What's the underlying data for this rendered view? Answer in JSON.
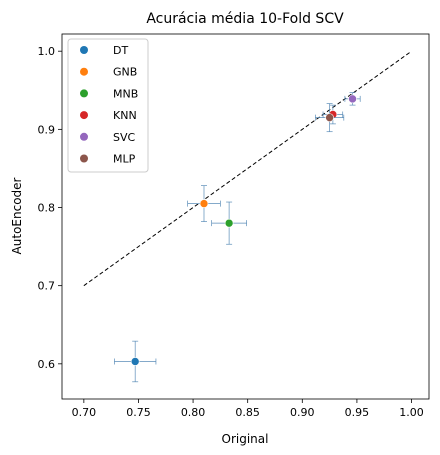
{
  "chart_data": {
    "type": "scatter",
    "title": "Acurácia média 10-Fold SCV",
    "xlabel": "Original",
    "ylabel": "AutoEncoder",
    "xlim": [
      0.68,
      1.016
    ],
    "ylim": [
      0.555,
      1.022
    ],
    "xticks": [
      "0.70",
      "0.75",
      "0.80",
      "0.85",
      "0.90",
      "0.95",
      "1.00"
    ],
    "yticks": [
      "0.6",
      "0.7",
      "0.8",
      "0.9",
      "1.0"
    ],
    "grid": false,
    "legend_position": "top-left",
    "reference_line": {
      "style": "dashed",
      "color": "#000000",
      "from": [
        0.7,
        0.7
      ],
      "to": [
        1.0,
        1.0
      ]
    },
    "error_bar_color": "#5b8db8",
    "series": [
      {
        "name": "DT",
        "color": "#1f77b4",
        "x": 0.747,
        "y": 0.603,
        "xerr": 0.019,
        "yerr": 0.026
      },
      {
        "name": "GNB",
        "color": "#ff7f0e",
        "x": 0.81,
        "y": 0.805,
        "xerr": 0.015,
        "yerr": 0.023
      },
      {
        "name": "MNB",
        "color": "#2ca02c",
        "x": 0.833,
        "y": 0.78,
        "xerr": 0.016,
        "yerr": 0.027
      },
      {
        "name": "KNN",
        "color": "#d62728",
        "x": 0.928,
        "y": 0.919,
        "xerr": 0.009,
        "yerr": 0.012
      },
      {
        "name": "SVC",
        "color": "#9467bd",
        "x": 0.946,
        "y": 0.939,
        "xerr": 0.007,
        "yerr": 0.008
      },
      {
        "name": "MLP",
        "color": "#8c564b",
        "x": 0.925,
        "y": 0.915,
        "xerr": 0.013,
        "yerr": 0.018
      }
    ]
  }
}
